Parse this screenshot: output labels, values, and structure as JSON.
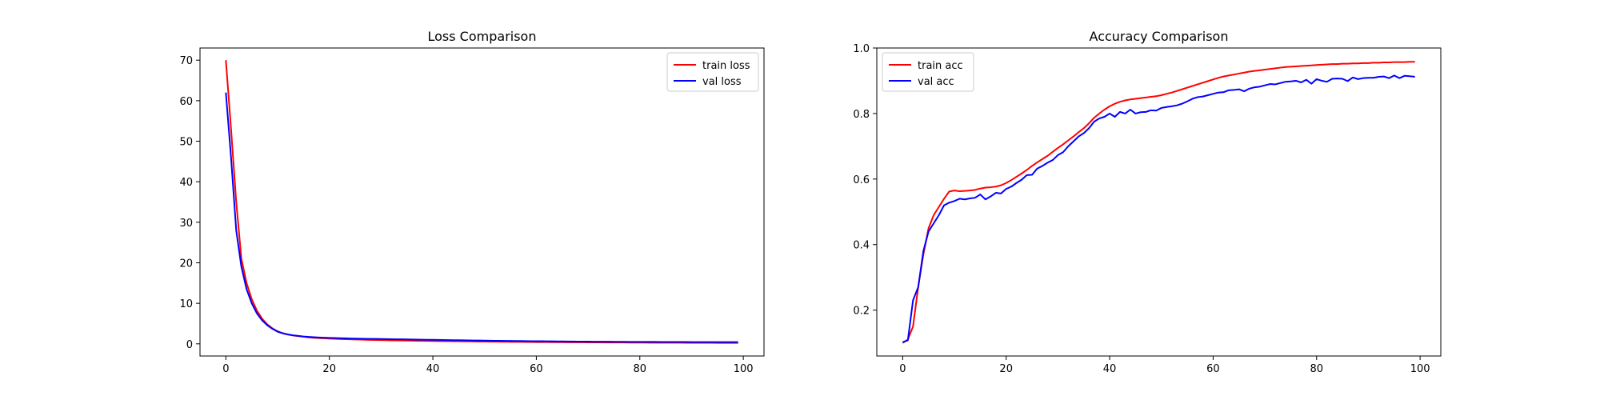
{
  "chart_data": [
    {
      "type": "line",
      "title": "Loss Comparison",
      "xlabel": "",
      "ylabel": "",
      "xlim": [
        -5,
        104
      ],
      "ylim": [
        -3,
        73
      ],
      "x_ticks": [
        0,
        20,
        40,
        60,
        80,
        100
      ],
      "y_ticks": [
        0,
        10,
        20,
        30,
        40,
        50,
        60,
        70
      ],
      "grid": false,
      "legend_position": "top-right",
      "x": [
        0,
        1,
        2,
        3,
        4,
        5,
        6,
        7,
        8,
        9,
        10,
        11,
        12,
        13,
        14,
        15,
        16,
        17,
        18,
        19,
        20,
        21,
        22,
        23,
        24,
        25,
        26,
        27,
        28,
        29,
        30,
        31,
        32,
        33,
        34,
        35,
        36,
        37,
        38,
        39,
        40,
        41,
        42,
        43,
        44,
        45,
        46,
        47,
        48,
        49,
        50,
        51,
        52,
        53,
        54,
        55,
        56,
        57,
        58,
        59,
        60,
        61,
        62,
        63,
        64,
        65,
        66,
        67,
        68,
        69,
        70,
        71,
        72,
        73,
        74,
        75,
        76,
        77,
        78,
        79,
        80,
        81,
        82,
        83,
        84,
        85,
        86,
        87,
        88,
        89,
        90,
        91,
        92,
        93,
        94,
        95,
        96,
        97,
        98,
        99
      ],
      "series": [
        {
          "name": "train loss",
          "color": "#ff0000",
          "values": [
            70.0,
            53.0,
            35.0,
            21.0,
            15.0,
            11.0,
            8.2,
            6.2,
            4.8,
            3.8,
            3.1,
            2.6,
            2.3,
            2.05,
            1.9,
            1.75,
            1.6,
            1.5,
            1.42,
            1.36,
            1.3,
            1.25,
            1.2,
            1.15,
            1.11,
            1.07,
            1.04,
            1.01,
            0.98,
            0.95,
            0.92,
            0.89,
            0.86,
            0.84,
            0.82,
            0.8,
            0.78,
            0.76,
            0.74,
            0.72,
            0.7,
            0.68,
            0.66,
            0.65,
            0.63,
            0.62,
            0.6,
            0.59,
            0.57,
            0.56,
            0.55,
            0.54,
            0.52,
            0.51,
            0.5,
            0.49,
            0.48,
            0.47,
            0.46,
            0.45,
            0.44,
            0.43,
            0.42,
            0.41,
            0.4,
            0.4,
            0.39,
            0.38,
            0.37,
            0.37,
            0.36,
            0.35,
            0.35,
            0.34,
            0.33,
            0.33,
            0.32,
            0.32,
            0.31,
            0.31,
            0.3,
            0.3,
            0.29,
            0.29,
            0.28,
            0.28,
            0.28,
            0.27,
            0.27,
            0.26,
            0.26,
            0.26,
            0.25,
            0.25,
            0.25,
            0.24,
            0.24,
            0.24,
            0.23,
            0.23
          ]
        },
        {
          "name": "val loss",
          "color": "#0000ff",
          "values": [
            62.0,
            46.0,
            28.0,
            19.0,
            13.5,
            10.0,
            7.5,
            5.8,
            4.6,
            3.7,
            3.0,
            2.6,
            2.3,
            2.1,
            1.95,
            1.82,
            1.72,
            1.64,
            1.57,
            1.52,
            1.47,
            1.43,
            1.39,
            1.36,
            1.33,
            1.3,
            1.28,
            1.25,
            1.23,
            1.21,
            1.19,
            1.17,
            1.15,
            1.13,
            1.11,
            1.09,
            1.07,
            1.05,
            1.03,
            1.01,
            0.99,
            0.97,
            0.95,
            0.93,
            0.91,
            0.89,
            0.87,
            0.85,
            0.83,
            0.82,
            0.8,
            0.78,
            0.76,
            0.75,
            0.73,
            0.72,
            0.7,
            0.69,
            0.68,
            0.66,
            0.65,
            0.64,
            0.63,
            0.62,
            0.6,
            0.59,
            0.58,
            0.57,
            0.56,
            0.56,
            0.55,
            0.54,
            0.53,
            0.52,
            0.52,
            0.51,
            0.5,
            0.5,
            0.49,
            0.49,
            0.48,
            0.48,
            0.47,
            0.47,
            0.46,
            0.46,
            0.46,
            0.45,
            0.45,
            0.45,
            0.44,
            0.44,
            0.44,
            0.44,
            0.43,
            0.43,
            0.43,
            0.43,
            0.42,
            0.42
          ]
        }
      ]
    },
    {
      "type": "line",
      "title": "Accuracy Comparison",
      "xlabel": "",
      "ylabel": "",
      "xlim": [
        -5,
        104
      ],
      "ylim": [
        0.06,
        1.0
      ],
      "x_ticks": [
        0,
        20,
        40,
        60,
        80,
        100
      ],
      "y_ticks": [
        0.2,
        0.4,
        0.6,
        0.8,
        1.0
      ],
      "y_tick_labels": [
        "0.2",
        "0.4",
        "0.6",
        "0.8",
        "1.0"
      ],
      "grid": false,
      "legend_position": "top-left",
      "x": [
        0,
        1,
        2,
        3,
        4,
        5,
        6,
        7,
        8,
        9,
        10,
        11,
        12,
        13,
        14,
        15,
        16,
        17,
        18,
        19,
        20,
        21,
        22,
        23,
        24,
        25,
        26,
        27,
        28,
        29,
        30,
        31,
        32,
        33,
        34,
        35,
        36,
        37,
        38,
        39,
        40,
        41,
        42,
        43,
        44,
        45,
        46,
        47,
        48,
        49,
        50,
        51,
        52,
        53,
        54,
        55,
        56,
        57,
        58,
        59,
        60,
        61,
        62,
        63,
        64,
        65,
        66,
        67,
        68,
        69,
        70,
        71,
        72,
        73,
        74,
        75,
        76,
        77,
        78,
        79,
        80,
        81,
        82,
        83,
        84,
        85,
        86,
        87,
        88,
        89,
        90,
        91,
        92,
        93,
        94,
        95,
        96,
        97,
        98,
        99
      ],
      "series": [
        {
          "name": "train acc",
          "color": "#ff0000",
          "values": [
            0.1,
            0.11,
            0.15,
            0.27,
            0.37,
            0.45,
            0.49,
            0.515,
            0.54,
            0.562,
            0.565,
            0.563,
            0.564,
            0.565,
            0.567,
            0.571,
            0.574,
            0.575,
            0.577,
            0.581,
            0.588,
            0.597,
            0.607,
            0.617,
            0.628,
            0.64,
            0.651,
            0.661,
            0.671,
            0.683,
            0.695,
            0.706,
            0.718,
            0.73,
            0.743,
            0.755,
            0.77,
            0.787,
            0.8,
            0.812,
            0.822,
            0.83,
            0.836,
            0.84,
            0.843,
            0.845,
            0.847,
            0.849,
            0.851,
            0.853,
            0.856,
            0.86,
            0.864,
            0.869,
            0.874,
            0.879,
            0.884,
            0.889,
            0.894,
            0.899,
            0.904,
            0.909,
            0.913,
            0.916,
            0.919,
            0.922,
            0.925,
            0.928,
            0.93,
            0.932,
            0.934,
            0.936,
            0.938,
            0.94,
            0.942,
            0.943,
            0.944,
            0.945,
            0.946,
            0.947,
            0.948,
            0.949,
            0.95,
            0.951,
            0.951,
            0.952,
            0.952,
            0.953,
            0.953,
            0.954,
            0.954,
            0.955,
            0.955,
            0.956,
            0.956,
            0.957,
            0.957,
            0.957,
            0.958,
            0.958
          ]
        },
        {
          "name": "val acc",
          "color": "#0000ff",
          "values": [
            0.102,
            0.108,
            0.23,
            0.27,
            0.38,
            0.44,
            0.465,
            0.49,
            0.52,
            0.528,
            0.533,
            0.54,
            0.538,
            0.541,
            0.543,
            0.553,
            0.538,
            0.547,
            0.558,
            0.556,
            0.57,
            0.577,
            0.588,
            0.598,
            0.612,
            0.613,
            0.632,
            0.64,
            0.65,
            0.658,
            0.673,
            0.682,
            0.7,
            0.715,
            0.73,
            0.74,
            0.755,
            0.775,
            0.785,
            0.79,
            0.8,
            0.79,
            0.805,
            0.8,
            0.812,
            0.8,
            0.804,
            0.805,
            0.81,
            0.809,
            0.817,
            0.82,
            0.822,
            0.825,
            0.83,
            0.837,
            0.845,
            0.85,
            0.852,
            0.856,
            0.86,
            0.864,
            0.865,
            0.871,
            0.872,
            0.874,
            0.868,
            0.876,
            0.88,
            0.882,
            0.886,
            0.89,
            0.889,
            0.893,
            0.897,
            0.898,
            0.9,
            0.895,
            0.903,
            0.891,
            0.905,
            0.9,
            0.897,
            0.906,
            0.907,
            0.906,
            0.899,
            0.91,
            0.905,
            0.908,
            0.909,
            0.909,
            0.912,
            0.913,
            0.908,
            0.916,
            0.908,
            0.915,
            0.914,
            0.912
          ]
        }
      ]
    }
  ]
}
